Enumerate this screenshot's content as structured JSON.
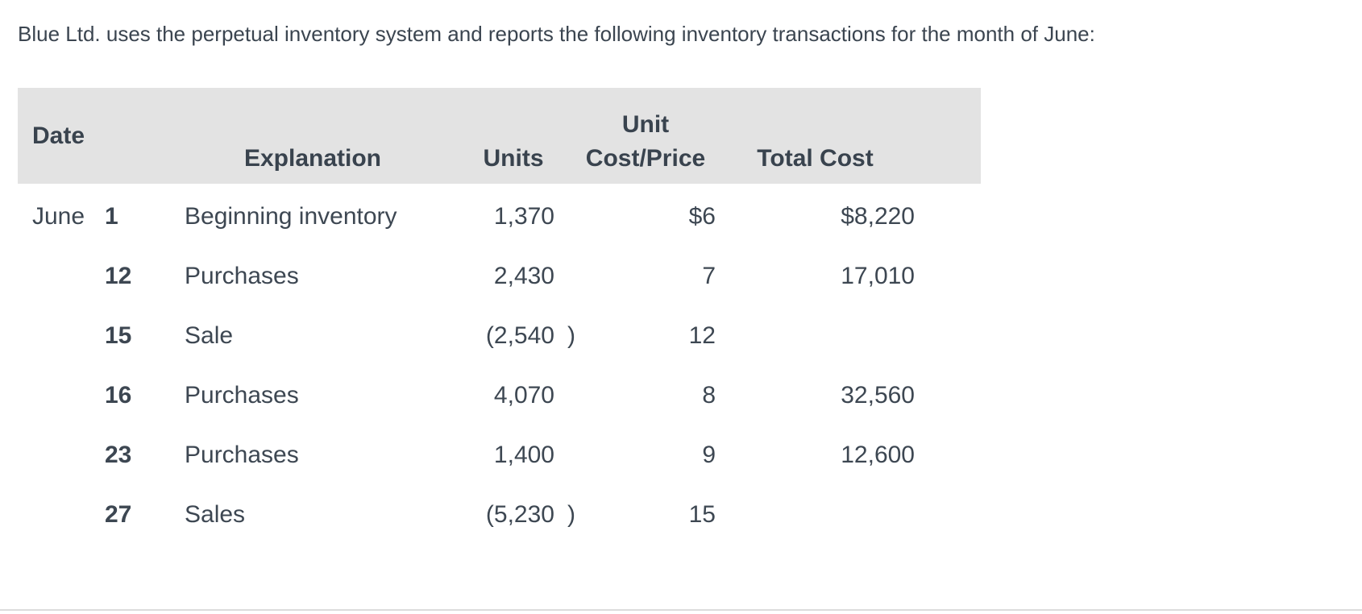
{
  "title": "Blue Ltd. uses the perpetual inventory system and reports the following inventory transactions for the month of June:",
  "colors": {
    "text": "#3d4752",
    "header_background": "#e3e3e3",
    "bottom_rule": "#dcdcdc"
  },
  "table": {
    "headers": {
      "date": "Date",
      "explanation": "Explanation",
      "units": "Units",
      "unit_cost_line1": "Unit",
      "unit_cost_line2": "Cost/Price",
      "total_cost": "Total Cost"
    },
    "rows": [
      {
        "month": "June",
        "day": "1",
        "explanation": "Beginning inventory",
        "units": "1,370",
        "units_paren": "",
        "unit_cost": "$6",
        "total_cost": "$8,220"
      },
      {
        "month": "",
        "day": "12",
        "explanation": "Purchases",
        "units": "2,430",
        "units_paren": "",
        "unit_cost": "7",
        "total_cost": "17,010"
      },
      {
        "month": "",
        "day": "15",
        "explanation": "Sale",
        "units": "(2,540",
        "units_paren": ")",
        "unit_cost": "12",
        "total_cost": ""
      },
      {
        "month": "",
        "day": "16",
        "explanation": "Purchases",
        "units": "4,070",
        "units_paren": "",
        "unit_cost": "8",
        "total_cost": "32,560"
      },
      {
        "month": "",
        "day": "23",
        "explanation": "Purchases",
        "units": "1,400",
        "units_paren": "",
        "unit_cost": "9",
        "total_cost": "12,600"
      },
      {
        "month": "",
        "day": "27",
        "explanation": "Sales",
        "units": "(5,230",
        "units_paren": ")",
        "unit_cost": "15",
        "total_cost": ""
      }
    ]
  }
}
